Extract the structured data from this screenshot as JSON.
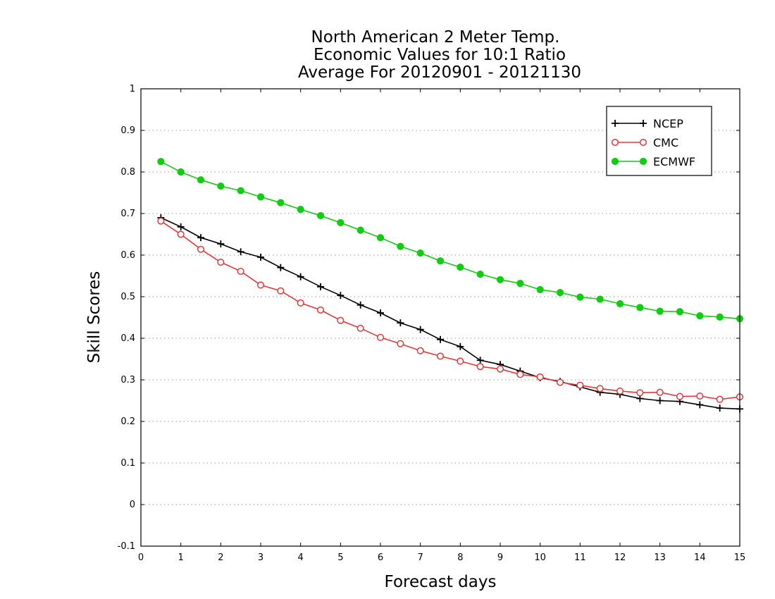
{
  "chart_data": {
    "type": "line",
    "title": [
      "North American 2 Meter Temp.",
      "Economic Values for 10:1 Ratio",
      "Average For 20120901 - 20121130"
    ],
    "xlabel": "Forecast days",
    "ylabel": "Skill Scores",
    "xlim": [
      0,
      15
    ],
    "ylim": [
      -0.1,
      1
    ],
    "xticks": [
      0,
      1,
      2,
      3,
      4,
      5,
      6,
      7,
      8,
      9,
      10,
      11,
      12,
      13,
      14,
      15
    ],
    "xtick_labels": [
      "0",
      "1",
      "2",
      "3",
      "4",
      "5",
      "6",
      "7",
      "8",
      "9",
      "10",
      "11",
      "12",
      "13",
      "14",
      "15"
    ],
    "yticks": [
      -0.1,
      0,
      0.1,
      0.2,
      0.3,
      0.4,
      0.5,
      0.6,
      0.7,
      0.8,
      0.9,
      1
    ],
    "ytick_labels": [
      "-0.1",
      "0",
      "0.1",
      "0.2",
      "0.3",
      "0.4",
      "0.5",
      "0.6",
      "0.7",
      "0.8",
      "0.9",
      "1"
    ],
    "grid": true,
    "legend_position": "top-right",
    "x": [
      0.5,
      1,
      1.5,
      2,
      2.5,
      3,
      3.5,
      4,
      4.5,
      5,
      5.5,
      6,
      6.5,
      7,
      7.5,
      8,
      8.5,
      9,
      9.5,
      10,
      10.5,
      11,
      11.5,
      12,
      12.5,
      13,
      13.5,
      14,
      14.5,
      15
    ],
    "series": [
      {
        "name": "NCEP",
        "color": "#000000",
        "marker": "plus",
        "values": [
          0.69,
          0.668,
          0.642,
          0.627,
          0.608,
          0.595,
          0.57,
          0.548,
          0.524,
          0.503,
          0.48,
          0.461,
          0.437,
          0.421,
          0.397,
          0.38,
          0.347,
          0.337,
          0.321,
          0.305,
          0.296,
          0.283,
          0.27,
          0.265,
          0.255,
          0.25,
          0.248,
          0.24,
          0.232,
          0.23
        ]
      },
      {
        "name": "CMC",
        "color": "#e53838",
        "marker": "open-circle",
        "values": [
          0.682,
          0.65,
          0.614,
          0.583,
          0.561,
          0.528,
          0.514,
          0.485,
          0.468,
          0.443,
          0.424,
          0.402,
          0.387,
          0.37,
          0.357,
          0.345,
          0.332,
          0.326,
          0.313,
          0.307,
          0.294,
          0.287,
          0.279,
          0.273,
          0.269,
          0.27,
          0.26,
          0.261,
          0.253,
          0.259
        ]
      },
      {
        "name": "ECMWF",
        "color": "#11cc11",
        "marker": "filled-circle",
        "values": [
          0.825,
          0.8,
          0.781,
          0.766,
          0.755,
          0.74,
          0.726,
          0.71,
          0.695,
          0.678,
          0.66,
          0.642,
          0.621,
          0.605,
          0.586,
          0.571,
          0.554,
          0.541,
          0.532,
          0.517,
          0.51,
          0.499,
          0.494,
          0.483,
          0.474,
          0.465,
          0.464,
          0.454,
          0.451,
          0.447
        ]
      }
    ]
  }
}
